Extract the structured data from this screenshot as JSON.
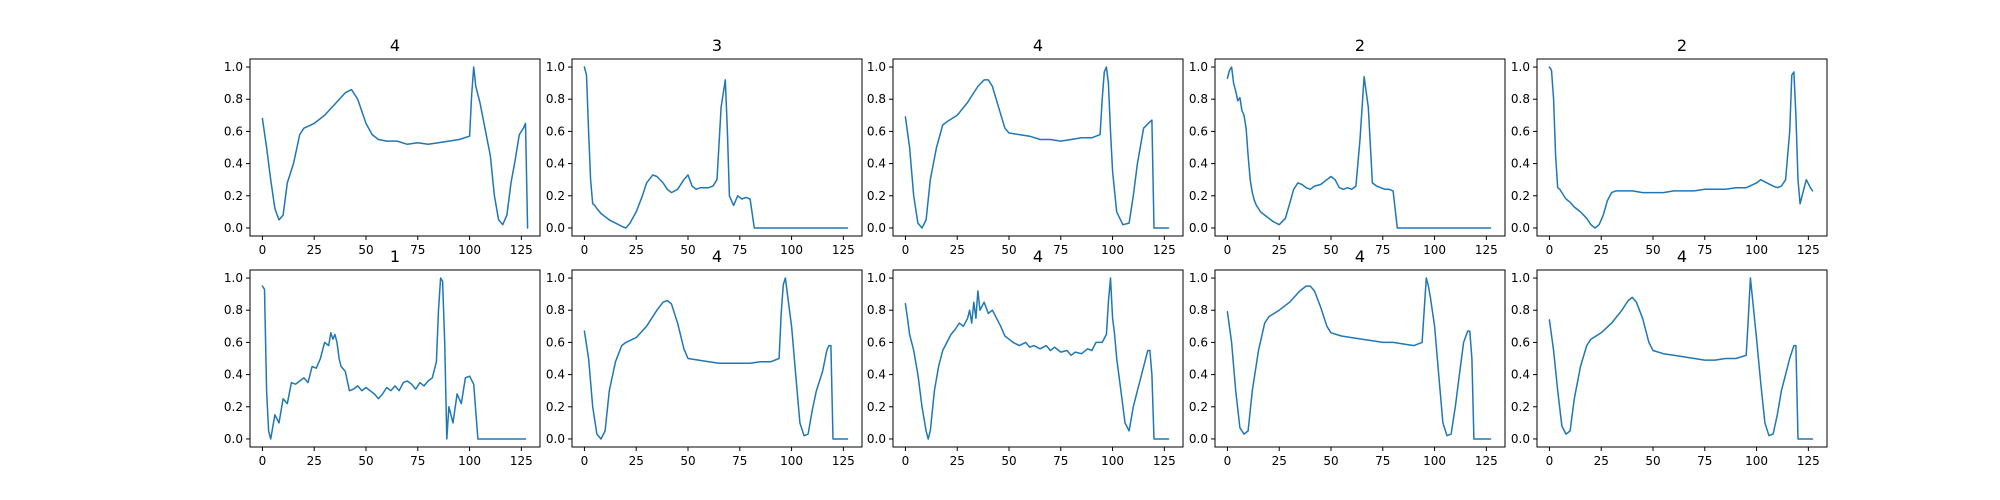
{
  "chart_data": [
    {
      "type": "line",
      "title": "4",
      "xlabel": "",
      "ylabel": "",
      "xlim": [
        -6,
        134
      ],
      "ylim": [
        -0.05,
        1.05
      ],
      "xticks": [
        "0",
        "25",
        "50",
        "75",
        "100",
        "125"
      ],
      "yticks": [
        "0.0",
        "0.2",
        "0.4",
        "0.6",
        "0.8",
        "1.0"
      ],
      "color": "#1f77b4",
      "grid": false,
      "x": [
        0,
        2,
        4,
        6,
        8,
        10,
        12,
        15,
        18,
        20,
        25,
        30,
        35,
        40,
        43,
        46,
        50,
        53,
        56,
        60,
        65,
        70,
        75,
        80,
        85,
        90,
        95,
        100,
        101,
        102,
        103,
        105,
        110,
        112,
        114,
        116,
        118,
        120,
        122,
        124,
        126,
        127,
        128
      ],
      "y": [
        0.68,
        0.5,
        0.3,
        0.12,
        0.05,
        0.08,
        0.28,
        0.4,
        0.58,
        0.62,
        0.65,
        0.7,
        0.77,
        0.84,
        0.86,
        0.8,
        0.65,
        0.58,
        0.55,
        0.54,
        0.54,
        0.52,
        0.53,
        0.52,
        0.53,
        0.54,
        0.55,
        0.57,
        0.82,
        1.0,
        0.88,
        0.78,
        0.45,
        0.2,
        0.05,
        0.02,
        0.08,
        0.28,
        0.42,
        0.58,
        0.62,
        0.65,
        0.0
      ]
    },
    {
      "type": "line",
      "title": "3",
      "xlabel": "",
      "ylabel": "",
      "xlim": [
        -6,
        134
      ],
      "ylim": [
        -0.05,
        1.05
      ],
      "xticks": [
        "0",
        "25",
        "50",
        "75",
        "100",
        "125"
      ],
      "yticks": [
        "0.0",
        "0.2",
        "0.4",
        "0.6",
        "0.8",
        "1.0"
      ],
      "color": "#1f77b4",
      "grid": false,
      "x": [
        0,
        1,
        2,
        3,
        4,
        5,
        6,
        8,
        10,
        12,
        15,
        18,
        20,
        22,
        25,
        28,
        30,
        33,
        35,
        38,
        40,
        42,
        45,
        48,
        50,
        52,
        54,
        56,
        58,
        60,
        62,
        64,
        66,
        68,
        69,
        70,
        72,
        74,
        76,
        78,
        80,
        82,
        100,
        127
      ],
      "y": [
        1.0,
        0.95,
        0.6,
        0.3,
        0.15,
        0.14,
        0.12,
        0.09,
        0.07,
        0.05,
        0.03,
        0.01,
        0.0,
        0.03,
        0.1,
        0.2,
        0.28,
        0.33,
        0.32,
        0.28,
        0.24,
        0.22,
        0.24,
        0.3,
        0.33,
        0.26,
        0.24,
        0.25,
        0.25,
        0.25,
        0.26,
        0.3,
        0.75,
        0.92,
        0.6,
        0.2,
        0.14,
        0.2,
        0.18,
        0.19,
        0.18,
        0.0,
        0.0,
        0.0
      ]
    },
    {
      "type": "line",
      "title": "4",
      "xlabel": "",
      "ylabel": "",
      "xlim": [
        -6,
        134
      ],
      "ylim": [
        -0.05,
        1.05
      ],
      "xticks": [
        "0",
        "25",
        "50",
        "75",
        "100",
        "125"
      ],
      "yticks": [
        "0.0",
        "0.2",
        "0.4",
        "0.6",
        "0.8",
        "1.0"
      ],
      "color": "#1f77b4",
      "grid": false,
      "x": [
        0,
        2,
        4,
        6,
        8,
        10,
        12,
        15,
        18,
        20,
        25,
        30,
        35,
        38,
        40,
        42,
        45,
        48,
        50,
        55,
        60,
        65,
        70,
        75,
        80,
        85,
        90,
        94,
        95,
        96,
        97,
        98,
        99,
        100,
        102,
        105,
        108,
        110,
        112,
        115,
        118,
        119,
        120,
        127
      ],
      "y": [
        0.69,
        0.5,
        0.2,
        0.03,
        0.0,
        0.05,
        0.3,
        0.5,
        0.64,
        0.66,
        0.7,
        0.78,
        0.88,
        0.92,
        0.92,
        0.88,
        0.75,
        0.62,
        0.59,
        0.58,
        0.57,
        0.55,
        0.55,
        0.54,
        0.55,
        0.56,
        0.56,
        0.58,
        0.8,
        0.97,
        1.0,
        0.9,
        0.6,
        0.35,
        0.1,
        0.02,
        0.03,
        0.2,
        0.4,
        0.62,
        0.66,
        0.67,
        0.0,
        0.0
      ]
    },
    {
      "type": "line",
      "title": "2",
      "xlabel": "",
      "ylabel": "",
      "xlim": [
        -6,
        134
      ],
      "ylim": [
        -0.05,
        1.05
      ],
      "xticks": [
        "0",
        "25",
        "50",
        "75",
        "100",
        "125"
      ],
      "yticks": [
        "0.0",
        "0.2",
        "0.4",
        "0.6",
        "0.8",
        "1.0"
      ],
      "color": "#1f77b4",
      "grid": false,
      "x": [
        0,
        1,
        2,
        3,
        4,
        5,
        6,
        7,
        8,
        9,
        10,
        11,
        12,
        13,
        14,
        15,
        16,
        18,
        20,
        22,
        25,
        28,
        30,
        32,
        34,
        36,
        38,
        40,
        42,
        45,
        48,
        50,
        52,
        54,
        56,
        58,
        60,
        62,
        64,
        66,
        68,
        70,
        72,
        74,
        76,
        78,
        80,
        82,
        100,
        127
      ],
      "y": [
        0.93,
        0.98,
        1.0,
        0.9,
        0.85,
        0.79,
        0.81,
        0.73,
        0.7,
        0.62,
        0.45,
        0.3,
        0.22,
        0.17,
        0.14,
        0.12,
        0.1,
        0.08,
        0.06,
        0.04,
        0.02,
        0.06,
        0.15,
        0.24,
        0.28,
        0.27,
        0.25,
        0.24,
        0.26,
        0.27,
        0.3,
        0.32,
        0.3,
        0.25,
        0.24,
        0.25,
        0.24,
        0.26,
        0.55,
        0.94,
        0.75,
        0.28,
        0.26,
        0.25,
        0.24,
        0.24,
        0.23,
        0.0,
        0.0,
        0.0
      ]
    },
    {
      "type": "line",
      "title": "2",
      "xlabel": "",
      "ylabel": "",
      "xlim": [
        -6,
        134
      ],
      "ylim": [
        -0.05,
        1.05
      ],
      "xticks": [
        "0",
        "25",
        "50",
        "75",
        "100",
        "125"
      ],
      "yticks": [
        "0.0",
        "0.2",
        "0.4",
        "0.6",
        "0.8",
        "1.0"
      ],
      "color": "#1f77b4",
      "grid": false,
      "x": [
        0,
        1,
        2,
        3,
        4,
        5,
        6,
        8,
        10,
        12,
        15,
        18,
        20,
        22,
        24,
        26,
        28,
        30,
        32,
        35,
        40,
        45,
        50,
        55,
        60,
        65,
        70,
        75,
        80,
        85,
        90,
        95,
        100,
        102,
        105,
        108,
        110,
        112,
        114,
        116,
        117,
        118,
        119,
        120,
        121,
        122,
        124,
        126,
        127
      ],
      "y": [
        1.0,
        0.98,
        0.8,
        0.45,
        0.25,
        0.24,
        0.22,
        0.18,
        0.16,
        0.13,
        0.1,
        0.06,
        0.02,
        0.0,
        0.02,
        0.08,
        0.17,
        0.22,
        0.23,
        0.23,
        0.23,
        0.22,
        0.22,
        0.22,
        0.23,
        0.23,
        0.23,
        0.24,
        0.24,
        0.24,
        0.25,
        0.25,
        0.28,
        0.3,
        0.28,
        0.26,
        0.25,
        0.26,
        0.3,
        0.6,
        0.95,
        0.97,
        0.7,
        0.3,
        0.15,
        0.2,
        0.3,
        0.25,
        0.23
      ]
    },
    {
      "type": "line",
      "title": "1",
      "xlabel": "",
      "ylabel": "",
      "xlim": [
        -6,
        134
      ],
      "ylim": [
        -0.05,
        1.05
      ],
      "xticks": [
        "0",
        "25",
        "50",
        "75",
        "100",
        "125"
      ],
      "yticks": [
        "0.0",
        "0.2",
        "0.4",
        "0.6",
        "0.8",
        "1.0"
      ],
      "color": "#1f77b4",
      "grid": false,
      "x": [
        0,
        1,
        2,
        3,
        4,
        6,
        8,
        10,
        12,
        14,
        16,
        18,
        20,
        22,
        24,
        26,
        28,
        30,
        32,
        33,
        34,
        35,
        36,
        37,
        38,
        40,
        42,
        44,
        46,
        48,
        50,
        52,
        54,
        56,
        58,
        60,
        62,
        64,
        66,
        68,
        70,
        72,
        74,
        76,
        78,
        80,
        82,
        84,
        85,
        86,
        87,
        88,
        89,
        90,
        92,
        94,
        96,
        98,
        100,
        102,
        104,
        110,
        127
      ],
      "y": [
        0.95,
        0.93,
        0.3,
        0.05,
        0.0,
        0.15,
        0.1,
        0.25,
        0.22,
        0.35,
        0.34,
        0.36,
        0.38,
        0.35,
        0.45,
        0.44,
        0.5,
        0.6,
        0.58,
        0.66,
        0.62,
        0.65,
        0.6,
        0.5,
        0.45,
        0.42,
        0.3,
        0.31,
        0.33,
        0.3,
        0.32,
        0.3,
        0.28,
        0.25,
        0.28,
        0.32,
        0.3,
        0.33,
        0.3,
        0.35,
        0.36,
        0.34,
        0.31,
        0.35,
        0.33,
        0.36,
        0.38,
        0.48,
        0.8,
        1.0,
        0.98,
        0.6,
        0.0,
        0.2,
        0.1,
        0.28,
        0.22,
        0.38,
        0.39,
        0.34,
        0.0,
        0.0,
        0.0
      ]
    },
    {
      "type": "line",
      "title": "4",
      "xlabel": "",
      "ylabel": "",
      "xlim": [
        -6,
        134
      ],
      "ylim": [
        -0.05,
        1.05
      ],
      "xticks": [
        "0",
        "25",
        "50",
        "75",
        "100",
        "125"
      ],
      "yticks": [
        "0.0",
        "0.2",
        "0.4",
        "0.6",
        "0.8",
        "1.0"
      ],
      "color": "#1f77b4",
      "grid": false,
      "x": [
        0,
        2,
        4,
        6,
        8,
        10,
        12,
        15,
        18,
        20,
        25,
        30,
        35,
        38,
        40,
        42,
        45,
        48,
        50,
        55,
        60,
        65,
        70,
        75,
        80,
        85,
        90,
        94,
        95,
        96,
        97,
        98,
        100,
        102,
        104,
        106,
        108,
        110,
        112,
        115,
        117,
        118,
        119,
        120,
        127
      ],
      "y": [
        0.67,
        0.5,
        0.2,
        0.03,
        0.0,
        0.05,
        0.3,
        0.48,
        0.58,
        0.6,
        0.63,
        0.7,
        0.8,
        0.85,
        0.86,
        0.84,
        0.72,
        0.56,
        0.5,
        0.49,
        0.48,
        0.47,
        0.47,
        0.47,
        0.47,
        0.48,
        0.48,
        0.5,
        0.78,
        0.96,
        1.0,
        0.9,
        0.7,
        0.4,
        0.1,
        0.02,
        0.03,
        0.18,
        0.3,
        0.42,
        0.55,
        0.58,
        0.58,
        0.0,
        0.0
      ]
    },
    {
      "type": "line",
      "title": "4",
      "xlabel": "",
      "ylabel": "",
      "xlim": [
        -6,
        134
      ],
      "ylim": [
        -0.05,
        1.05
      ],
      "xticks": [
        "0",
        "25",
        "50",
        "75",
        "100",
        "125"
      ],
      "yticks": [
        "0.0",
        "0.2",
        "0.4",
        "0.6",
        "0.8",
        "1.0"
      ],
      "color": "#1f77b4",
      "grid": false,
      "x": [
        0,
        1,
        2,
        4,
        6,
        8,
        10,
        11,
        12,
        14,
        16,
        18,
        20,
        22,
        24,
        26,
        28,
        30,
        31,
        32,
        33,
        34,
        35,
        36,
        38,
        40,
        42,
        44,
        46,
        48,
        50,
        52,
        55,
        58,
        60,
        62,
        65,
        68,
        70,
        72,
        75,
        78,
        80,
        82,
        85,
        88,
        90,
        92,
        95,
        97,
        98,
        99,
        100,
        101,
        102,
        104,
        106,
        108,
        110,
        112,
        114,
        116,
        117,
        118,
        119,
        120,
        127
      ],
      "y": [
        0.84,
        0.75,
        0.65,
        0.55,
        0.4,
        0.2,
        0.05,
        0.0,
        0.05,
        0.3,
        0.45,
        0.55,
        0.6,
        0.65,
        0.68,
        0.72,
        0.7,
        0.75,
        0.8,
        0.72,
        0.85,
        0.75,
        0.92,
        0.8,
        0.85,
        0.78,
        0.8,
        0.75,
        0.7,
        0.64,
        0.62,
        0.6,
        0.58,
        0.6,
        0.57,
        0.58,
        0.56,
        0.58,
        0.55,
        0.57,
        0.54,
        0.55,
        0.52,
        0.54,
        0.53,
        0.56,
        0.55,
        0.6,
        0.6,
        0.65,
        0.85,
        1.0,
        0.75,
        0.65,
        0.5,
        0.3,
        0.1,
        0.05,
        0.2,
        0.3,
        0.4,
        0.5,
        0.55,
        0.55,
        0.4,
        0.0,
        0.0
      ]
    },
    {
      "type": "line",
      "title": "4",
      "xlabel": "",
      "ylabel": "",
      "xlim": [
        -6,
        134
      ],
      "ylim": [
        -0.05,
        1.05
      ],
      "xticks": [
        "0",
        "25",
        "50",
        "75",
        "100",
        "125"
      ],
      "yticks": [
        "0.0",
        "0.2",
        "0.4",
        "0.6",
        "0.8",
        "1.0"
      ],
      "color": "#1f77b4",
      "grid": false,
      "x": [
        0,
        2,
        4,
        6,
        8,
        10,
        12,
        15,
        18,
        20,
        25,
        30,
        35,
        38,
        40,
        42,
        45,
        48,
        50,
        55,
        60,
        65,
        70,
        75,
        80,
        85,
        90,
        94,
        95,
        96,
        97,
        98,
        100,
        102,
        104,
        106,
        108,
        110,
        112,
        114,
        116,
        117,
        118,
        119,
        120,
        127
      ],
      "y": [
        0.79,
        0.6,
        0.3,
        0.07,
        0.03,
        0.05,
        0.3,
        0.55,
        0.72,
        0.76,
        0.8,
        0.85,
        0.92,
        0.95,
        0.95,
        0.92,
        0.82,
        0.7,
        0.66,
        0.64,
        0.63,
        0.62,
        0.61,
        0.6,
        0.6,
        0.59,
        0.58,
        0.6,
        0.8,
        1.0,
        0.95,
        0.88,
        0.7,
        0.4,
        0.1,
        0.02,
        0.03,
        0.2,
        0.4,
        0.6,
        0.67,
        0.67,
        0.5,
        0.0,
        0.0,
        0.0
      ]
    },
    {
      "type": "line",
      "title": "4",
      "xlabel": "",
      "ylabel": "",
      "xlim": [
        -6,
        134
      ],
      "ylim": [
        -0.05,
        1.05
      ],
      "xticks": [
        "0",
        "25",
        "50",
        "75",
        "100",
        "125"
      ],
      "yticks": [
        "0.0",
        "0.2",
        "0.4",
        "0.6",
        "0.8",
        "1.0"
      ],
      "color": "#1f77b4",
      "grid": false,
      "x": [
        0,
        2,
        4,
        6,
        8,
        10,
        12,
        15,
        18,
        20,
        25,
        30,
        35,
        38,
        40,
        42,
        45,
        48,
        50,
        55,
        60,
        65,
        70,
        75,
        80,
        85,
        90,
        95,
        96,
        97,
        98,
        99,
        100,
        102,
        104,
        106,
        108,
        110,
        112,
        114,
        116,
        118,
        119,
        120,
        127
      ],
      "y": [
        0.74,
        0.55,
        0.3,
        0.08,
        0.03,
        0.05,
        0.25,
        0.45,
        0.58,
        0.62,
        0.66,
        0.72,
        0.8,
        0.86,
        0.88,
        0.85,
        0.75,
        0.6,
        0.55,
        0.53,
        0.52,
        0.51,
        0.5,
        0.49,
        0.49,
        0.5,
        0.5,
        0.52,
        0.75,
        1.0,
        0.88,
        0.75,
        0.62,
        0.35,
        0.1,
        0.02,
        0.03,
        0.15,
        0.3,
        0.4,
        0.5,
        0.58,
        0.58,
        0.0,
        0.0
      ]
    }
  ]
}
